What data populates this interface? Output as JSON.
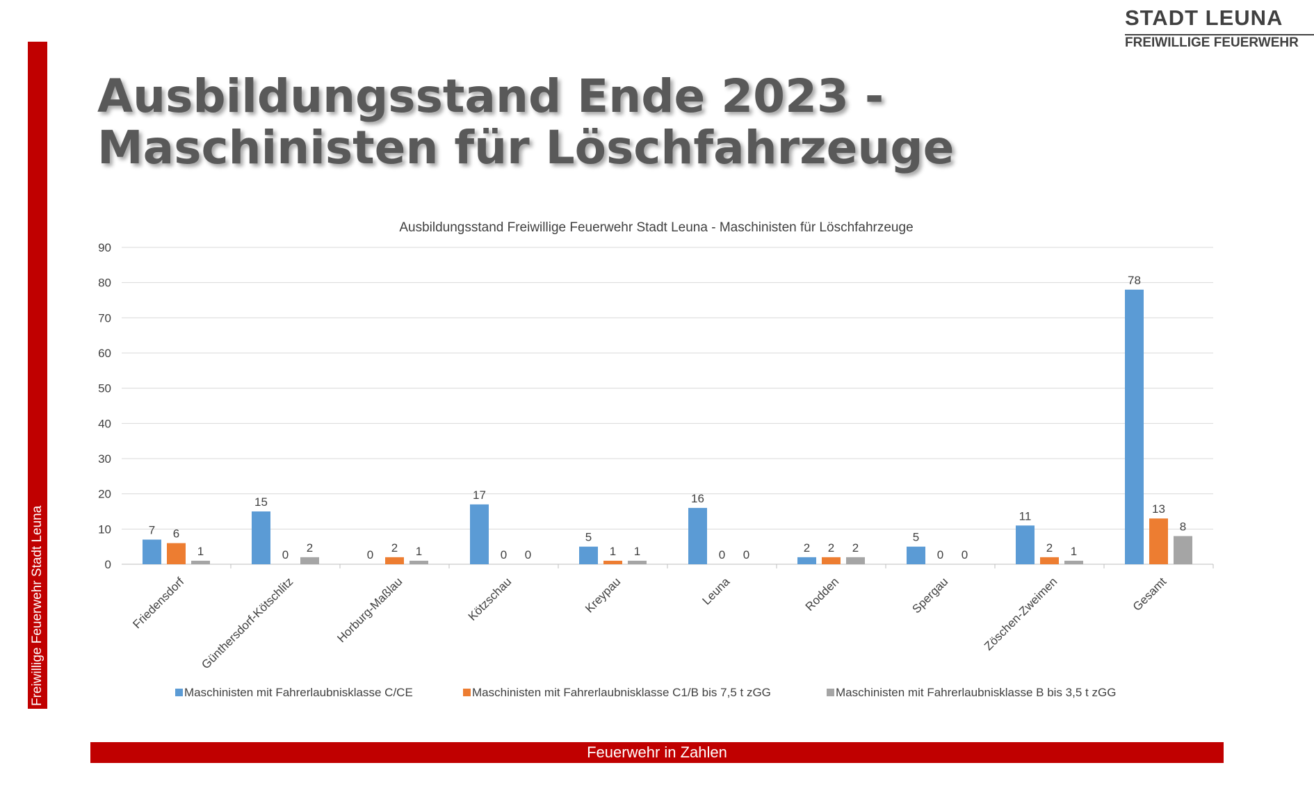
{
  "brand": {
    "title": "STADT LEUNA",
    "subtitle": "FREIWILLIGE FEUERWEHR"
  },
  "side_label": "Freiwillige Feuerwehr Stadt Leuna",
  "page_title": {
    "line1": "Ausbildungsstand Ende 2023 -",
    "line2": "Maschinisten für Löschfahrzeuge"
  },
  "footer_label": "Feuerwehr in Zahlen",
  "chart_data": {
    "type": "bar",
    "title": "Ausbildungsstand  Freiwillige  Feuerwehr  Stadt  Leuna  -  Maschinisten  für  Löschfahrzeuge",
    "xlabel": "",
    "ylabel": "",
    "ylim": [
      0,
      90
    ],
    "yticks": [
      0,
      10,
      20,
      30,
      40,
      50,
      60,
      70,
      80,
      90
    ],
    "grid": true,
    "legend_position": "bottom",
    "categories": [
      "Friedensdorf",
      "Günthersdorf-Kötschlitz",
      "Horburg-Maßlau",
      "Kötzschau",
      "Kreypau",
      "Leuna",
      "Rodden",
      "Spergau",
      "Zöschen-Zweimen",
      "Gesamt"
    ],
    "series": [
      {
        "name": "Maschinisten mit Fahrerlaubnisklasse C/CE",
        "color": "#5b9bd5",
        "values": [
          7,
          15,
          0,
          17,
          5,
          16,
          2,
          5,
          11,
          78
        ]
      },
      {
        "name": "Maschinisten mit Fahrerlaubnisklasse C1/B bis 7,5 t zGG",
        "color": "#ed7d31",
        "values": [
          6,
          0,
          2,
          0,
          1,
          0,
          2,
          0,
          2,
          13
        ]
      },
      {
        "name": "Maschinisten mit Fahrerlaubnisklasse B bis 3,5 t zGG",
        "color": "#a5a5a5",
        "values": [
          1,
          2,
          1,
          0,
          1,
          0,
          2,
          0,
          1,
          8
        ]
      }
    ]
  }
}
